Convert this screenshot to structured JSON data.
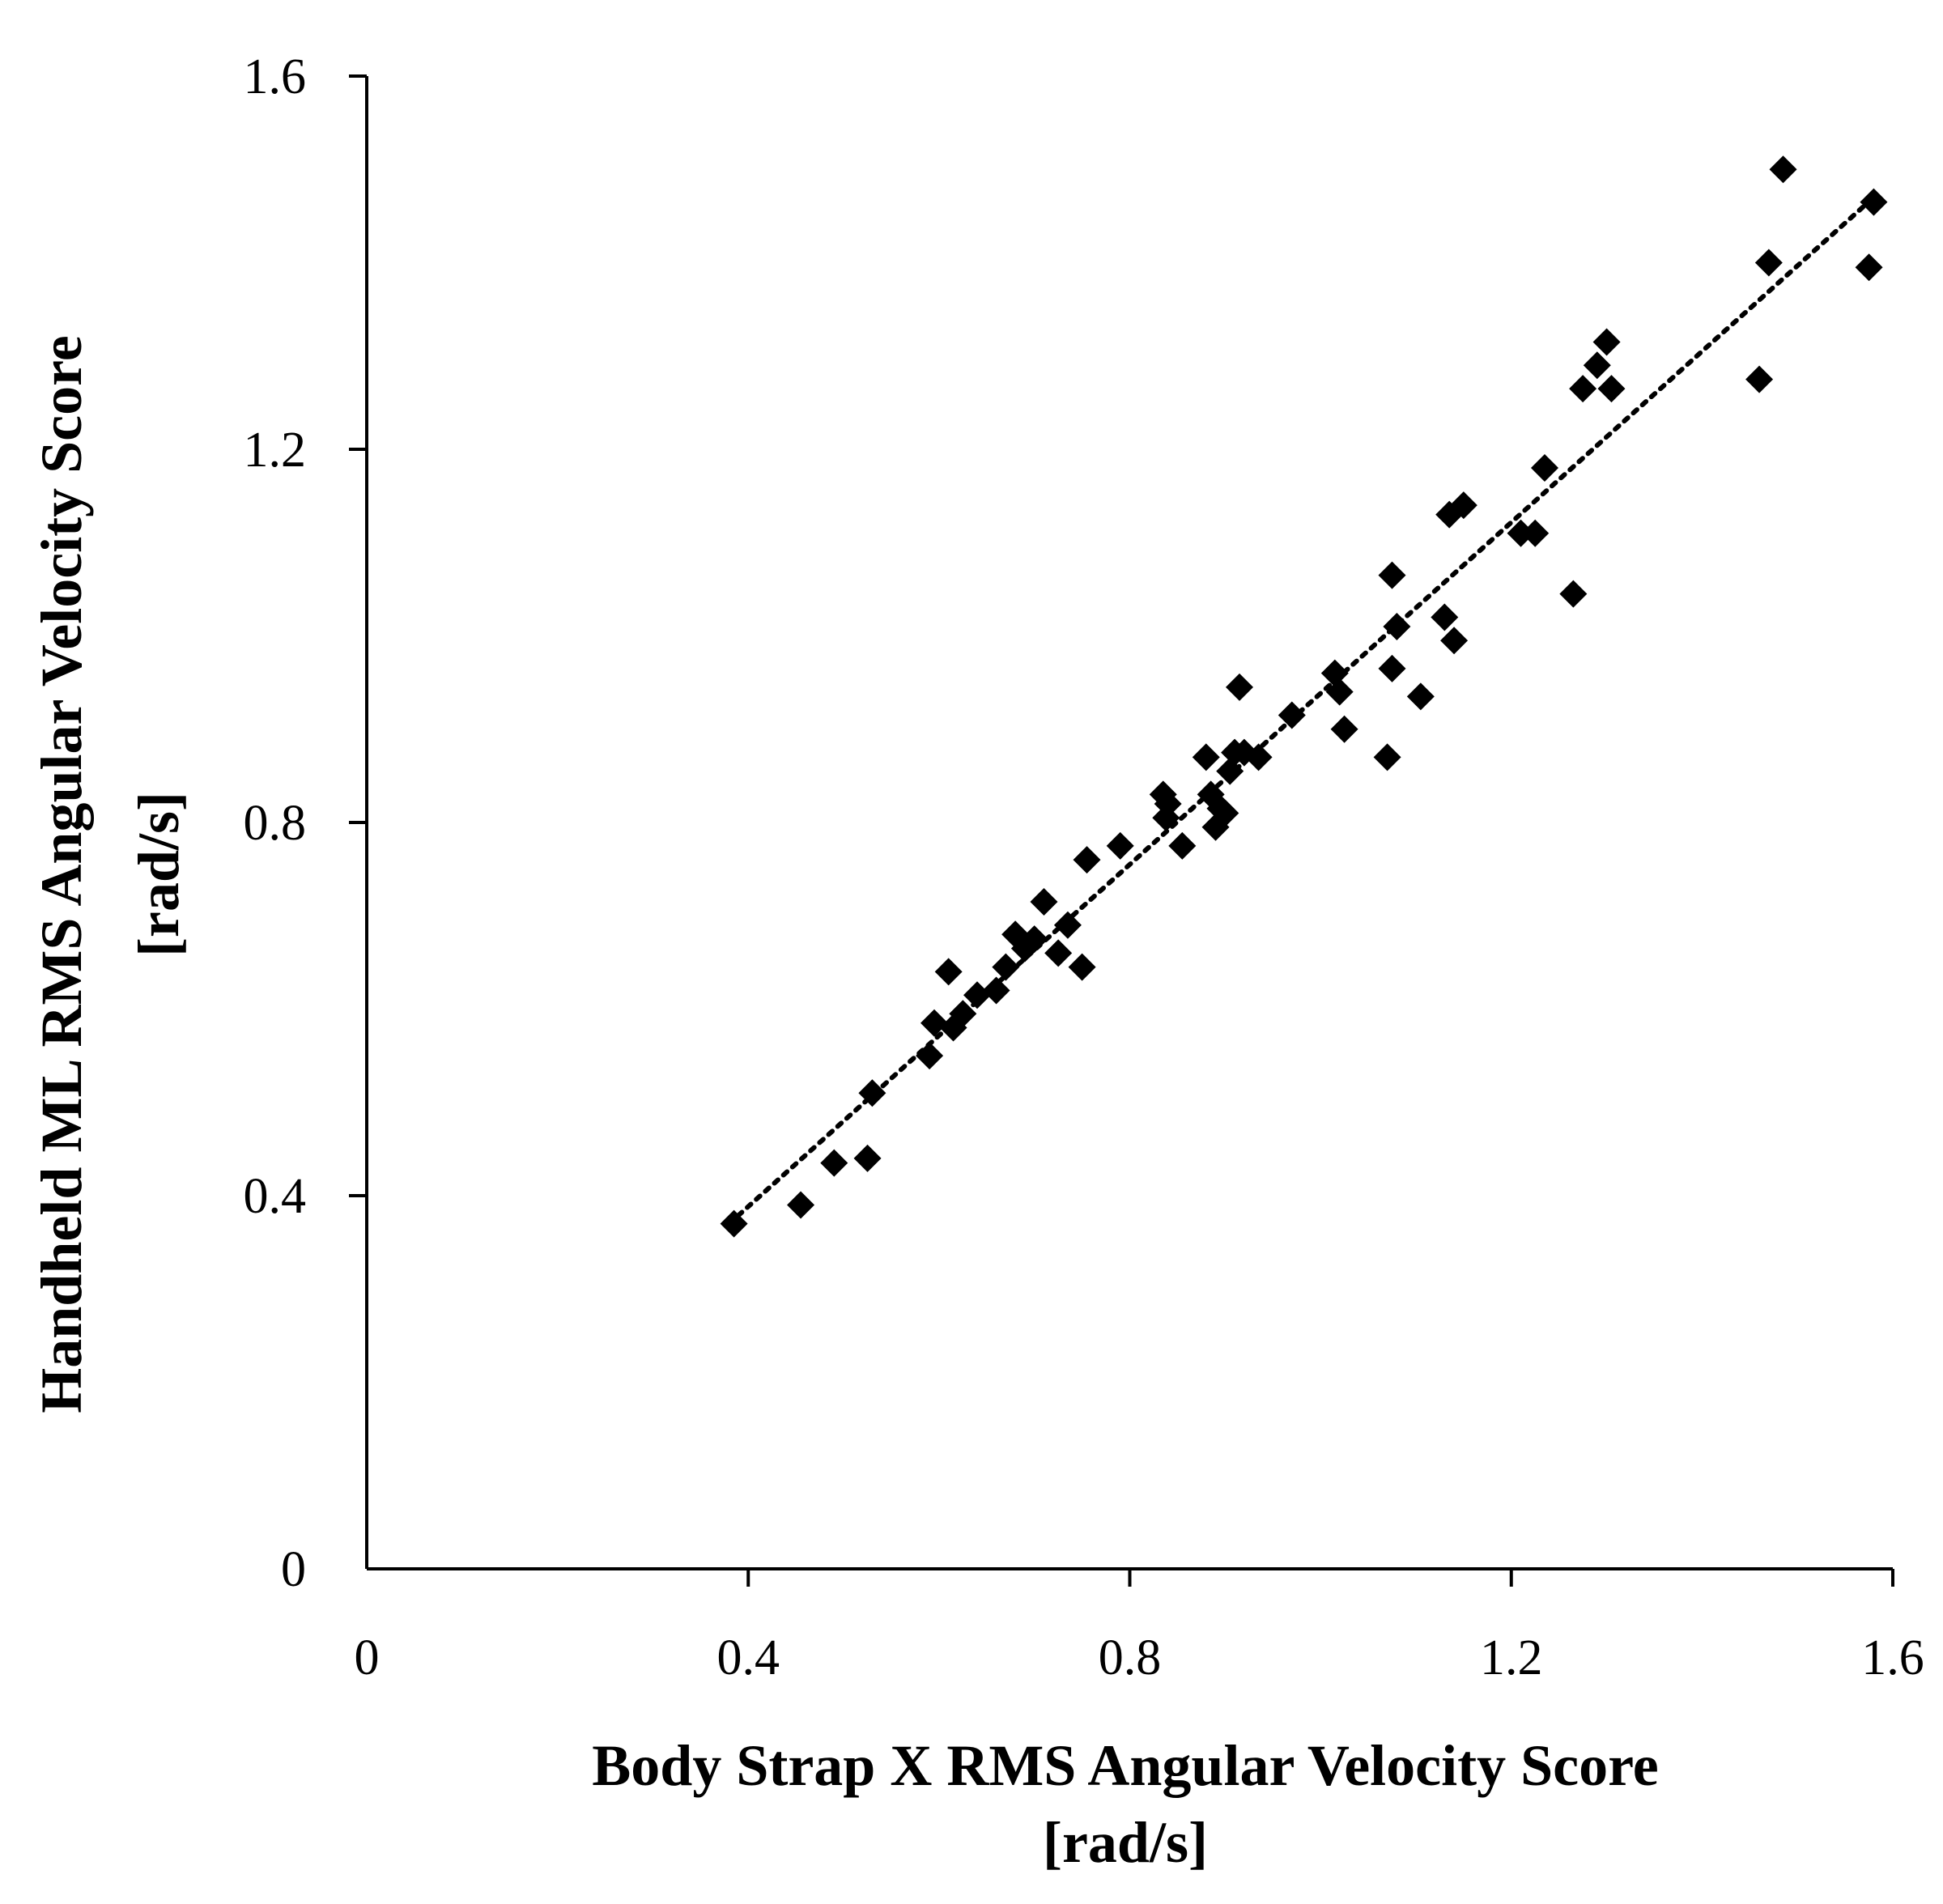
{
  "chart_data": {
    "type": "scatter",
    "title": "",
    "xlabel_lines": [
      "Body Strap X RMS Angular Velocity Score",
      "[rad/s]"
    ],
    "ylabel_lines": [
      "Handheld ML RMS Angular Velocity Score",
      "[rad/s]"
    ],
    "xlim": [
      0,
      1.6
    ],
    "ylim": [
      0,
      1.6
    ],
    "x_ticks": [
      0,
      0.4,
      0.8,
      1.2,
      1.6
    ],
    "y_ticks": [
      0,
      0.4,
      0.8,
      1.2,
      1.6
    ],
    "x_tick_labels": [
      "0",
      "0.4",
      "0.8",
      "1.2",
      "1.6"
    ],
    "y_tick_labels": [
      "0",
      "0.4",
      "0.8",
      "1.2",
      "1.6"
    ],
    "marker": "diamond",
    "marker_color": "#000000",
    "grid": false,
    "trendline": {
      "style": "dotted",
      "x": [
        0.38,
        1.58
      ],
      "y": [
        0.37,
        1.47
      ]
    },
    "points": [
      [
        0.385,
        0.37
      ],
      [
        0.455,
        0.39
      ],
      [
        0.49,
        0.435
      ],
      [
        0.525,
        0.44
      ],
      [
        0.53,
        0.51
      ],
      [
        0.59,
        0.55
      ],
      [
        0.595,
        0.585
      ],
      [
        0.61,
        0.64
      ],
      [
        0.615,
        0.58
      ],
      [
        0.625,
        0.595
      ],
      [
        0.64,
        0.615
      ],
      [
        0.66,
        0.62
      ],
      [
        0.67,
        0.645
      ],
      [
        0.68,
        0.68
      ],
      [
        0.69,
        0.665
      ],
      [
        0.7,
        0.675
      ],
      [
        0.71,
        0.715
      ],
      [
        0.725,
        0.66
      ],
      [
        0.735,
        0.69
      ],
      [
        0.75,
        0.645
      ],
      [
        0.755,
        0.76
      ],
      [
        0.79,
        0.775
      ],
      [
        0.835,
        0.83
      ],
      [
        0.838,
        0.805
      ],
      [
        0.84,
        0.82
      ],
      [
        0.855,
        0.775
      ],
      [
        0.88,
        0.87
      ],
      [
        0.885,
        0.83
      ],
      [
        0.89,
        0.795
      ],
      [
        0.895,
        0.815
      ],
      [
        0.9,
        0.81
      ],
      [
        0.905,
        0.855
      ],
      [
        0.91,
        0.875
      ],
      [
        0.915,
        0.945
      ],
      [
        0.92,
        0.875
      ],
      [
        0.935,
        0.87
      ],
      [
        0.97,
        0.915
      ],
      [
        1.015,
        0.96
      ],
      [
        1.02,
        0.94
      ],
      [
        1.025,
        0.9
      ],
      [
        1.07,
        0.87
      ],
      [
        1.075,
        1.065
      ],
      [
        1.075,
        0.965
      ],
      [
        1.08,
        1.01
      ],
      [
        1.105,
        0.935
      ],
      [
        1.13,
        1.02
      ],
      [
        1.135,
        1.13
      ],
      [
        1.14,
        0.995
      ],
      [
        1.15,
        1.14
      ],
      [
        1.21,
        1.11
      ],
      [
        1.225,
        1.11
      ],
      [
        1.235,
        1.18
      ],
      [
        1.265,
        1.045
      ],
      [
        1.275,
        1.265
      ],
      [
        1.29,
        1.29
      ],
      [
        1.3,
        1.315
      ],
      [
        1.305,
        1.265
      ],
      [
        1.46,
        1.275
      ],
      [
        1.47,
        1.4
      ],
      [
        1.485,
        1.5
      ],
      [
        1.575,
        1.395
      ],
      [
        1.58,
        1.465
      ]
    ]
  }
}
